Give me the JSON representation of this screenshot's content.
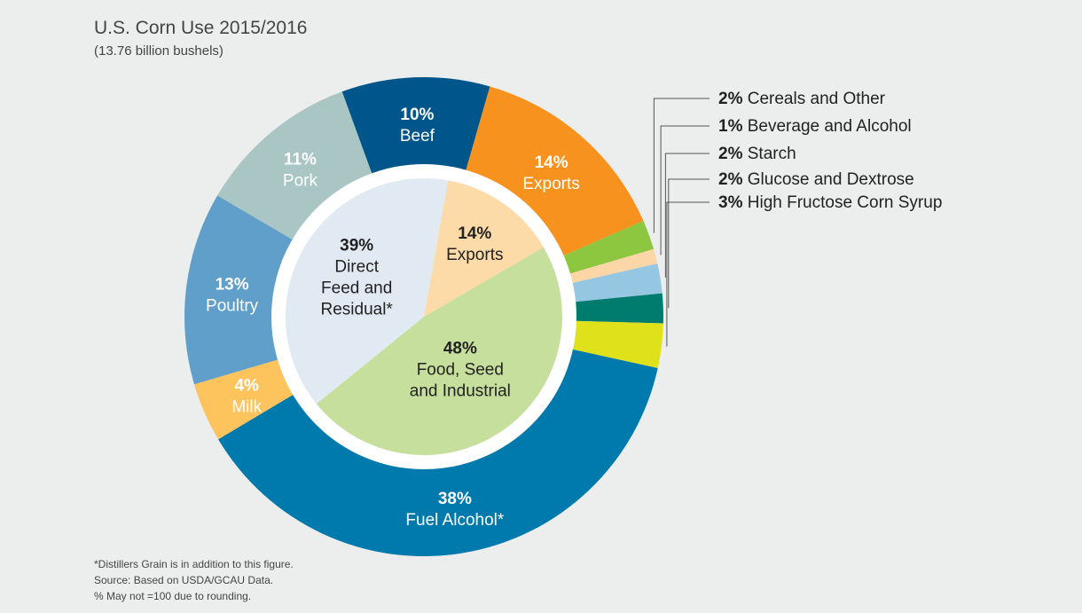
{
  "chart_data": {
    "type": "pie",
    "title": "U.S. Corn Use 2015/2016",
    "subtitle": "(13.76 billion bushels)",
    "outer_ring": [
      {
        "pct": "10%",
        "label": "Beef",
        "value": 10,
        "color": "#00568a"
      },
      {
        "pct": "14%",
        "label": "Exports",
        "value": 14,
        "color": "#f7921e"
      },
      {
        "pct": "2%",
        "label": "Cereals and Other",
        "value": 2,
        "color": "#8dc63f",
        "callout": true
      },
      {
        "pct": "1%",
        "label": "Beverage and Alcohol",
        "value": 1,
        "color": "#fdd6a8",
        "callout": true
      },
      {
        "pct": "2%",
        "label": "Starch",
        "value": 2,
        "color": "#95c6e2",
        "callout": true
      },
      {
        "pct": "2%",
        "label": "Glucose and Dextrose",
        "value": 2,
        "color": "#007c6f",
        "callout": true
      },
      {
        "pct": "3%",
        "label": "High Fructose Corn Syrup",
        "value": 3,
        "color": "#dfe11b",
        "callout": true
      },
      {
        "pct": "38%",
        "label": "Fuel Alcohol*",
        "value": 38,
        "color": "#0079ad"
      },
      {
        "pct": "4%",
        "label": "Milk",
        "value": 4,
        "color": "#fdc45e"
      },
      {
        "pct": "13%",
        "label": "Poultry",
        "value": 13,
        "color": "#5f9fca"
      },
      {
        "pct": "11%",
        "label": "Pork",
        "value": 11,
        "color": "#a9c6c4"
      }
    ],
    "inner_pie": [
      {
        "pct": "14%",
        "lines": [
          "Exports"
        ],
        "value": 14,
        "color": "#fddba8"
      },
      {
        "pct": "48%",
        "lines": [
          "Food, Seed",
          "and Industrial"
        ],
        "value": 48,
        "color": "#c6df9d"
      },
      {
        "pct": "39%",
        "lines": [
          "Direct",
          "Feed and",
          "Residual*"
        ],
        "value": 39,
        "color": "#e1eaf2"
      }
    ],
    "footnotes": [
      "*Distillers Grain is in addition to this figure.",
      "Source: Based on USDA/GCAU Data.",
      "% May not =100 due to rounding."
    ]
  }
}
